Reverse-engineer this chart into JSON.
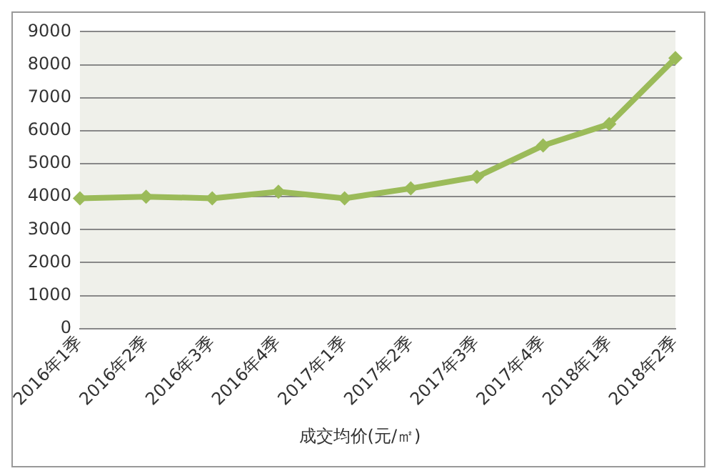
{
  "chart_data": {
    "type": "line",
    "categories": [
      "2016年1季",
      "2016年2季",
      "2016年3季",
      "2016年4季",
      "2017年1季",
      "2017年2季",
      "2017年3季",
      "2017年4季",
      "2018年1季",
      "2018年2季"
    ],
    "series": [
      {
        "name": "成交均价(元/㎡)",
        "color": "#9bbb59",
        "values": [
          3950,
          4000,
          3950,
          4150,
          3950,
          4250,
          4600,
          5550,
          6200,
          8200
        ]
      }
    ],
    "ylim": [
      0,
      9000
    ],
    "yticks": [
      0,
      1000,
      2000,
      3000,
      4000,
      5000,
      6000,
      7000,
      8000,
      9000
    ],
    "grid": "y",
    "legend": "bottom",
    "marker": "diamond",
    "line_style": "solid"
  }
}
